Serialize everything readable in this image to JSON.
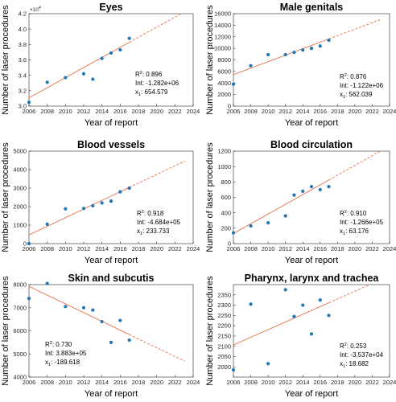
{
  "chart_data": [
    {
      "type": "scatter",
      "title": "Eyes",
      "xlabel": "Year of report",
      "ylabel": "Number of laser procedures",
      "xlim": [
        2006,
        2024
      ],
      "ylim": [
        30000,
        42000
      ],
      "xticks": [
        2006,
        2008,
        2010,
        2012,
        2014,
        2016,
        2018,
        2020,
        2022,
        2024
      ],
      "yticks": [
        3,
        3.2,
        3.4,
        3.6,
        3.8,
        4,
        4.2
      ],
      "y_multiplier": "×10",
      "y_multiplier_exp": "4",
      "x": [
        2006,
        2008,
        2010,
        2012,
        2013,
        2014,
        2015,
        2016,
        2017
      ],
      "y": [
        30500,
        33100,
        33700,
        34200,
        33500,
        36200,
        36900,
        37300,
        38800
      ],
      "fit": {
        "slope": 654.579,
        "intercept": -1282000,
        "solid_end": 2017
      },
      "stats": {
        "r2_label": "R",
        "r2_sup": "2",
        "r2_value": ": 0.896",
        "int_text": "Int: -1.282e+06",
        "x1_label": "x",
        "x1_sub": "1",
        "x1_value": ": 654.579"
      }
    },
    {
      "type": "scatter",
      "title": "Male genitals",
      "xlabel": "Year of report",
      "ylabel": "Number of laser procedures",
      "xlim": [
        2006,
        2024
      ],
      "ylim": [
        0,
        16000
      ],
      "xticks": [
        2006,
        2008,
        2010,
        2012,
        2014,
        2016,
        2018,
        2020,
        2022,
        2024
      ],
      "yticks": [
        0,
        2000,
        4000,
        6000,
        8000,
        10000,
        12000,
        14000,
        16000
      ],
      "x": [
        2006,
        2008,
        2010,
        2012,
        2013,
        2014,
        2015,
        2016,
        2017
      ],
      "y": [
        3800,
        7000,
        8900,
        8900,
        9300,
        9700,
        10000,
        10400,
        11400
      ],
      "fit": {
        "slope": 562.039,
        "intercept": -1122000,
        "solid_end": 2017
      },
      "stats": {
        "r2_label": "R",
        "r2_sup": "2",
        "r2_value": ": 0.876",
        "int_text": "Int: -1.122e+06",
        "x1_label": "x",
        "x1_sub": "1",
        "x1_value": ": 562.039"
      }
    },
    {
      "type": "scatter",
      "title": "Blood vessels",
      "xlabel": "Year of report",
      "ylabel": "Number of laser procedures",
      "xlim": [
        2006,
        2024
      ],
      "ylim": [
        0,
        5000
      ],
      "xticks": [
        2006,
        2008,
        2010,
        2012,
        2014,
        2016,
        2018,
        2020,
        2022,
        2024
      ],
      "yticks": [
        0,
        1000,
        2000,
        3000,
        4000,
        5000
      ],
      "x": [
        2006,
        2008,
        2010,
        2012,
        2013,
        2014,
        2015,
        2016,
        2017
      ],
      "y": [
        0,
        1050,
        1880,
        1900,
        2050,
        2200,
        2300,
        2800,
        3000
      ],
      "fit": {
        "slope": 233.733,
        "intercept": -468400,
        "solid_end": 2017
      },
      "stats": {
        "r2_label": "R",
        "r2_sup": "2",
        "r2_value": ": 0.918",
        "int_text": "Int: -4.684e+05",
        "x1_label": "x",
        "x1_sub": "1",
        "x1_value": ": 233.733"
      }
    },
    {
      "type": "scatter",
      "title": "Blood circulation",
      "xlabel": "Year of report",
      "ylabel": "Number of laser procedures",
      "xlim": [
        2006,
        2024
      ],
      "ylim": [
        0,
        1200
      ],
      "xticks": [
        2006,
        2008,
        2010,
        2012,
        2014,
        2016,
        2018,
        2020,
        2022,
        2024
      ],
      "yticks": [
        0,
        200,
        400,
        600,
        800,
        1000,
        1200
      ],
      "x": [
        2006,
        2008,
        2010,
        2012,
        2013,
        2014,
        2015,
        2016,
        2017
      ],
      "y": [
        140,
        230,
        270,
        360,
        630,
        680,
        740,
        700,
        740
      ],
      "fit": {
        "slope": 63.176,
        "intercept": -126600,
        "solid_end": 2017
      },
      "stats": {
        "r2_label": "R",
        "r2_sup": "2",
        "r2_value": ": 0.910",
        "int_text": "Int: -1.266e+05",
        "x1_label": "x",
        "x1_sub": "1",
        "x1_value": ": 63.176"
      }
    },
    {
      "type": "scatter",
      "title": "Skin and subcutis",
      "xlabel": "Year of report",
      "ylabel": "Number of laser procedures",
      "xlim": [
        2006,
        2024
      ],
      "ylim": [
        4000,
        8000
      ],
      "xticks": [
        2006,
        2008,
        2010,
        2012,
        2014,
        2016,
        2018,
        2020,
        2022,
        2024
      ],
      "yticks": [
        4000,
        5000,
        6000,
        7000,
        8000
      ],
      "x": [
        2006,
        2008,
        2010,
        2012,
        2013,
        2014,
        2015,
        2016,
        2017
      ],
      "y": [
        7400,
        8050,
        7050,
        7000,
        6900,
        6400,
        5500,
        6450,
        5600
      ],
      "fit": {
        "slope": -189.618,
        "intercept": 388300,
        "solid_end": 2017
      },
      "stats": {
        "r2_label": "R",
        "r2_sup": "2",
        "r2_value": ": 0.730",
        "int_text": "Int: 3.883e+05",
        "x1_label": "x",
        "x1_sub": "1",
        "x1_value": ": -189.618"
      }
    },
    {
      "type": "scatter",
      "title": "Pharynx, larynx and trachea",
      "xlabel": "Year of report",
      "ylabel": "Number of laser procedures",
      "xlim": [
        2006,
        2024
      ],
      "ylim": [
        1950,
        2400
      ],
      "xticks": [
        2006,
        2008,
        2010,
        2012,
        2014,
        2016,
        2018,
        2020,
        2022,
        2024
      ],
      "yticks": [
        2000,
        2050,
        2100,
        2150,
        2200,
        2250,
        2300,
        2350
      ],
      "x": [
        2006,
        2008,
        2010,
        2012,
        2013,
        2014,
        2015,
        2016,
        2017
      ],
      "y": [
        1985,
        2305,
        2015,
        2375,
        2245,
        2300,
        2160,
        2325,
        2250
      ],
      "fit": {
        "slope": 18.682,
        "intercept": -35370,
        "solid_end": 2017
      },
      "stats": {
        "r2_label": "R",
        "r2_sup": "2",
        "r2_value": ": 0.253",
        "int_text": "Int: -3.537e+04",
        "x1_label": "x",
        "x1_sub": "1",
        "x1_value": ": 18.682"
      }
    }
  ],
  "style": {
    "point_color": "#1f77b4",
    "fit_color": "#e8704a",
    "axis_color": "#262626"
  }
}
